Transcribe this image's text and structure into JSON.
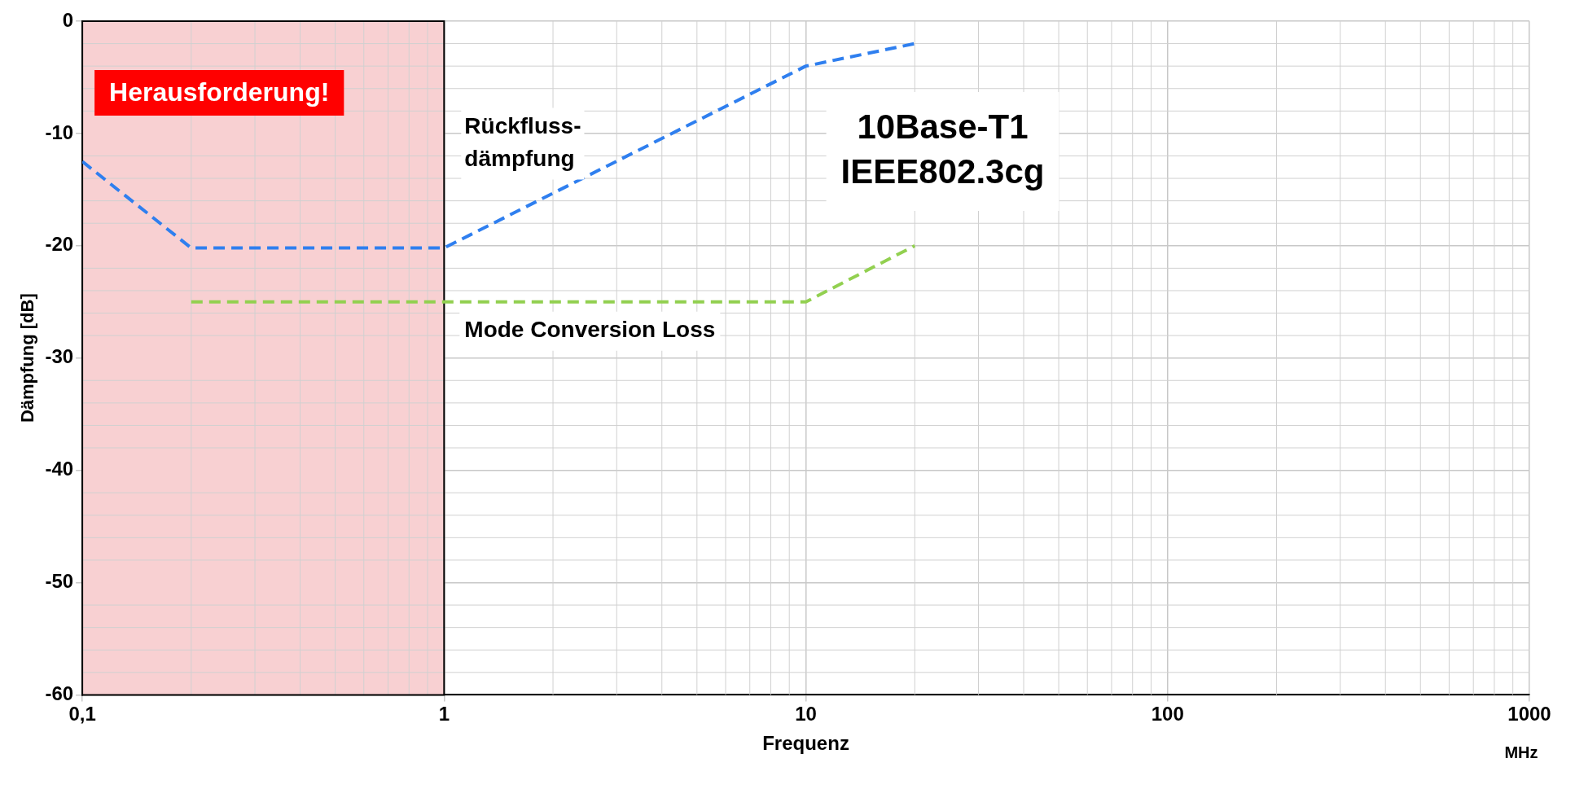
{
  "chart_data": {
    "type": "line",
    "xlabel": "Frequenz",
    "ylabel": "Dämpfung [dB]",
    "log": "x",
    "xlim": [
      0.1,
      1000
    ],
    "xticks": [
      {
        "value": 0.1,
        "label": "0,1"
      },
      1,
      10,
      100,
      1000
    ],
    "ylim": [
      -60,
      0
    ],
    "yticks": [
      -60,
      -50,
      -40,
      -30,
      -20,
      -10,
      0
    ],
    "series": [
      {
        "name": "Rückfluss-dämpfung",
        "color": "#2f7fef",
        "x": [
          0.1,
          0.2,
          1,
          10,
          20
        ],
        "values": [
          -12.5,
          -20.2,
          -20.2,
          -4,
          -2
        ]
      },
      {
        "name": "Mode Conversion Loss",
        "color": "#92d050",
        "x": [
          0.2,
          10,
          20
        ],
        "values": [
          -25,
          -25,
          -20
        ]
      }
    ],
    "bands": [
      {
        "axis": "x",
        "from": 0.1,
        "to": 1,
        "label": "Herausforderung!",
        "color": "#f8d0d2"
      }
    ],
    "annotations": [
      "10Base-T1",
      "IEEE802.3cg",
      "MHz"
    ],
    "grid": true,
    "legend": false,
    "line_style": "dashed",
    "marker": "none"
  }
}
